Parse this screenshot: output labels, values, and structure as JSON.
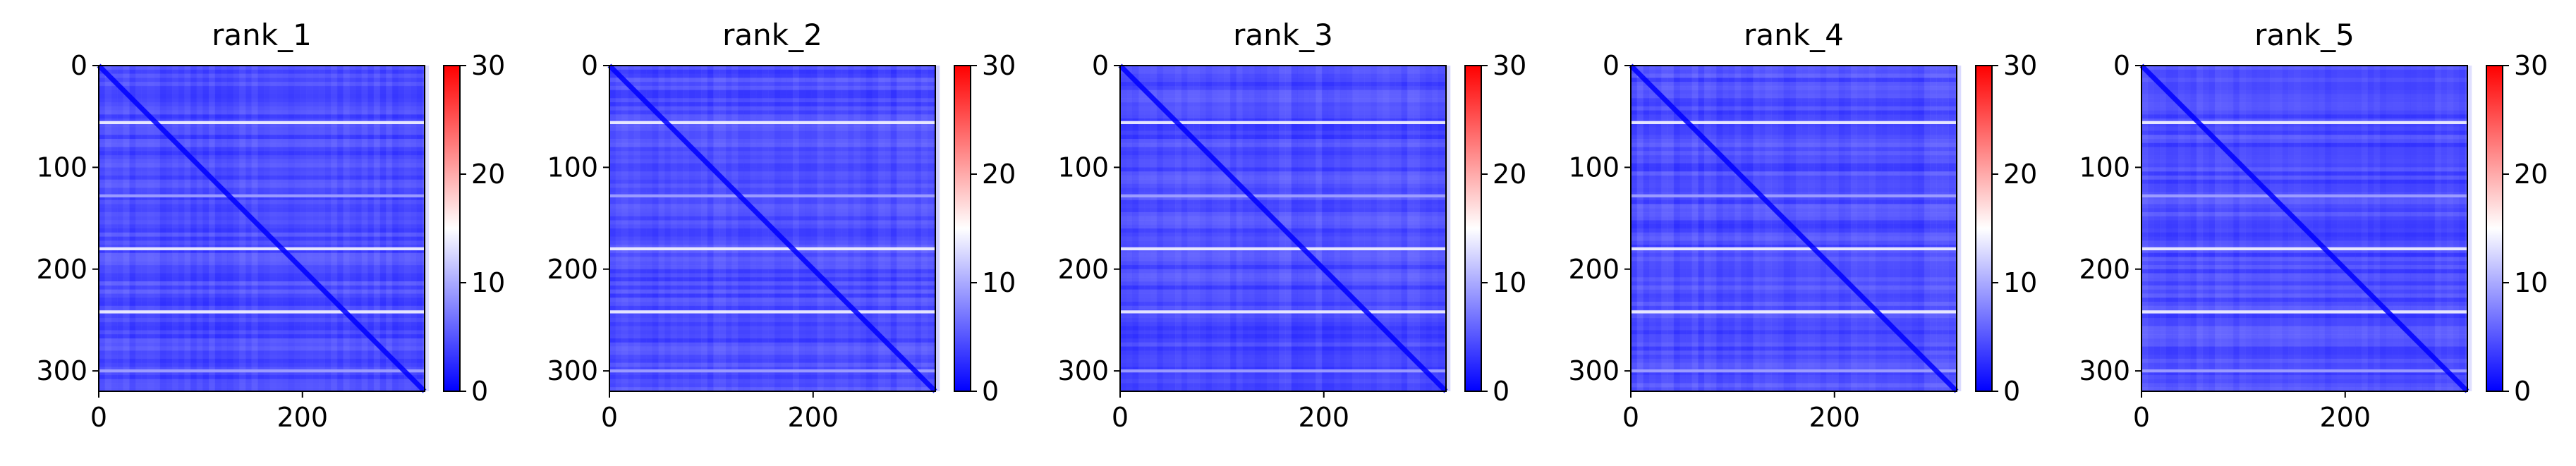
{
  "chart_data": [
    {
      "type": "heatmap",
      "title": "rank_1",
      "x_ticks": [
        "0",
        "200"
      ],
      "y_ticks": [
        "0",
        "100",
        "200",
        "300"
      ],
      "x_tick_values": [
        0,
        200
      ],
      "y_tick_values": [
        0,
        100,
        200,
        300
      ],
      "xlim": [
        0,
        320
      ],
      "ylim": [
        320,
        0
      ],
      "matrix_size": 320,
      "colorbar": {
        "ticks": [
          "0",
          "10",
          "20",
          "30"
        ],
        "tick_values": [
          0,
          10,
          20,
          30
        ],
        "range": [
          0,
          30
        ],
        "colormap": "bwr"
      },
      "bright_rows": [
        56,
        180,
        242,
        128,
        300
      ],
      "grid": false
    },
    {
      "type": "heatmap",
      "title": "rank_2",
      "x_ticks": [
        "0",
        "200"
      ],
      "y_ticks": [
        "0",
        "100",
        "200",
        "300"
      ],
      "x_tick_values": [
        0,
        200
      ],
      "y_tick_values": [
        0,
        100,
        200,
        300
      ],
      "xlim": [
        0,
        320
      ],
      "ylim": [
        320,
        0
      ],
      "matrix_size": 320,
      "colorbar": {
        "ticks": [
          "0",
          "10",
          "20",
          "30"
        ],
        "tick_values": [
          0,
          10,
          20,
          30
        ],
        "range": [
          0,
          30
        ],
        "colormap": "bwr"
      },
      "bright_rows": [
        56,
        180,
        242,
        128,
        300
      ],
      "grid": false
    },
    {
      "type": "heatmap",
      "title": "rank_3",
      "x_ticks": [
        "0",
        "200"
      ],
      "y_ticks": [
        "0",
        "100",
        "200",
        "300"
      ],
      "x_tick_values": [
        0,
        200
      ],
      "y_tick_values": [
        0,
        100,
        200,
        300
      ],
      "xlim": [
        0,
        320
      ],
      "ylim": [
        320,
        0
      ],
      "matrix_size": 320,
      "colorbar": {
        "ticks": [
          "0",
          "10",
          "20",
          "30"
        ],
        "tick_values": [
          0,
          10,
          20,
          30
        ],
        "range": [
          0,
          30
        ],
        "colormap": "bwr"
      },
      "bright_rows": [
        56,
        180,
        242,
        128,
        300
      ],
      "grid": false
    },
    {
      "type": "heatmap",
      "title": "rank_4",
      "x_ticks": [
        "0",
        "200"
      ],
      "y_ticks": [
        "0",
        "100",
        "200",
        "300"
      ],
      "x_tick_values": [
        0,
        200
      ],
      "y_tick_values": [
        0,
        100,
        200,
        300
      ],
      "xlim": [
        0,
        320
      ],
      "ylim": [
        320,
        0
      ],
      "matrix_size": 320,
      "colorbar": {
        "ticks": [
          "0",
          "10",
          "20",
          "30"
        ],
        "tick_values": [
          0,
          10,
          20,
          30
        ],
        "range": [
          0,
          30
        ],
        "colormap": "bwr"
      },
      "bright_rows": [
        56,
        180,
        242,
        128,
        300
      ],
      "grid": false
    },
    {
      "type": "heatmap",
      "title": "rank_5",
      "x_ticks": [
        "0",
        "200"
      ],
      "y_ticks": [
        "0",
        "100",
        "200",
        "300"
      ],
      "x_tick_values": [
        0,
        200
      ],
      "y_tick_values": [
        0,
        100,
        200,
        300
      ],
      "xlim": [
        0,
        320
      ],
      "ylim": [
        320,
        0
      ],
      "matrix_size": 320,
      "colorbar": {
        "ticks": [
          "0",
          "10",
          "20",
          "30"
        ],
        "tick_values": [
          0,
          10,
          20,
          30
        ],
        "range": [
          0,
          30
        ],
        "colormap": "bwr"
      },
      "bright_rows": [
        56,
        180,
        242,
        128,
        300
      ],
      "grid": false
    }
  ]
}
